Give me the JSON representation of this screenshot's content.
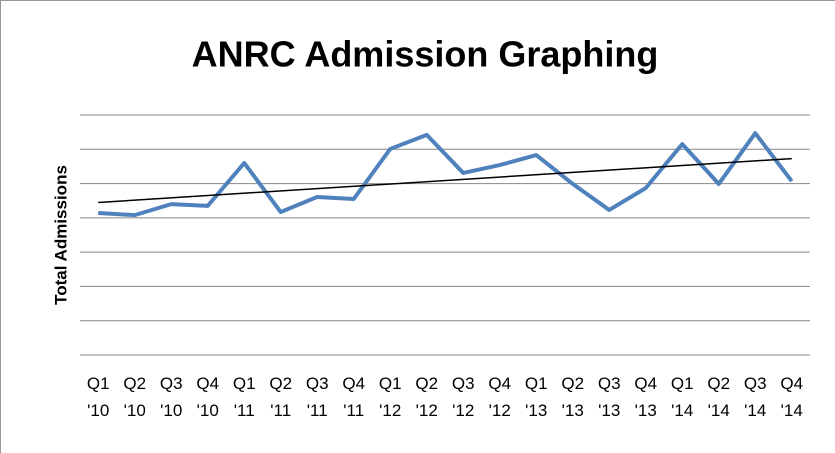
{
  "chart_data": {
    "type": "line",
    "title": "ANRC Admission Graphing",
    "y_label": "Total Admissions",
    "categories": [
      "Q1 '10",
      "Q2 '10",
      "Q3 '10",
      "Q4 '10",
      "Q1 '11",
      "Q2 '11",
      "Q3 '11",
      "Q4 '11",
      "Q1 '12",
      "Q2 '12",
      "Q3 '12",
      "Q4 '12",
      "Q1 '13",
      "Q2 '13",
      "Q3 '13",
      "Q4 '13",
      "Q1 '14",
      "Q2 '14",
      "Q3 '14",
      "Q4 '14"
    ],
    "series": [
      {
        "name": "Total Admissions",
        "color": "#4f81bd",
        "values": [
          4.14,
          4.08,
          4.4,
          4.35,
          5.6,
          4.17,
          4.61,
          4.55,
          6.01,
          6.42,
          5.31,
          5.54,
          5.83,
          4.99,
          4.23,
          4.87,
          6.15,
          4.99,
          6.47,
          5.07
        ]
      }
    ],
    "trendline": true,
    "trendline_color": "#000000",
    "ylim": [
      0,
      7
    ],
    "yticks": [
      0,
      1,
      2,
      3,
      4,
      5,
      6,
      7
    ],
    "grid": true
  }
}
